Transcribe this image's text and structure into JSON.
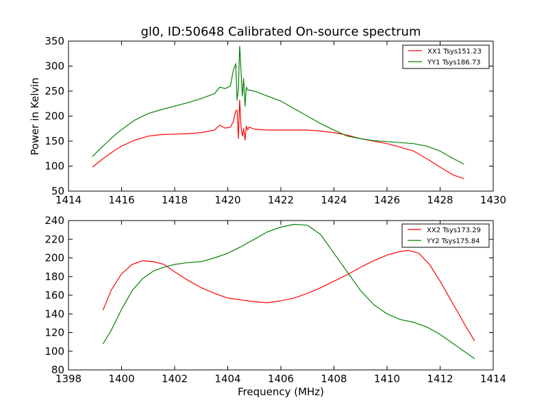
{
  "chart_data": [
    {
      "type": "line",
      "title": "gl0, ID:50648 Calibrated On-source spectrum",
      "xlabel": "",
      "ylabel": "Power in Kelvin",
      "xlim": [
        1414,
        1430
      ],
      "ylim": [
        50,
        350
      ],
      "xticks": [
        1414,
        1416,
        1418,
        1420,
        1422,
        1424,
        1426,
        1428,
        1430
      ],
      "yticks": [
        50,
        100,
        150,
        200,
        250,
        300,
        350
      ],
      "legend_position": "top-right",
      "grid": false,
      "series": [
        {
          "name": "XX1 Tsys151.23",
          "color": "#ff0000",
          "x": [
            1414.9,
            1415.3,
            1415.7,
            1416.0,
            1416.5,
            1417.0,
            1417.5,
            1418.0,
            1418.5,
            1419.0,
            1419.5,
            1419.7,
            1419.9,
            1420.1,
            1420.2,
            1420.3,
            1420.35,
            1420.4,
            1420.45,
            1420.5,
            1420.55,
            1420.6,
            1420.65,
            1420.7,
            1420.75,
            1420.8,
            1421.0,
            1421.5,
            1422.0,
            1422.5,
            1423.0,
            1423.5,
            1424.0,
            1424.5,
            1425.0,
            1425.5,
            1426.0,
            1426.5,
            1427.0,
            1427.5,
            1428.0,
            1428.5,
            1428.9
          ],
          "y": [
            98,
            115,
            130,
            140,
            152,
            160,
            163,
            164,
            165,
            167,
            172,
            182,
            176,
            178,
            188,
            210,
            212,
            155,
            232,
            178,
            160,
            175,
            152,
            180,
            172,
            178,
            174,
            172,
            172,
            172,
            172,
            170,
            167,
            162,
            155,
            150,
            145,
            138,
            130,
            115,
            98,
            82,
            75
          ]
        },
        {
          "name": "YY1 Tsys186.73",
          "color": "#008000",
          "x": [
            1414.9,
            1415.3,
            1415.7,
            1416.0,
            1416.5,
            1417.0,
            1417.5,
            1418.0,
            1418.5,
            1419.0,
            1419.5,
            1419.7,
            1419.9,
            1420.1,
            1420.2,
            1420.3,
            1420.35,
            1420.4,
            1420.45,
            1420.5,
            1420.55,
            1420.6,
            1420.65,
            1420.7,
            1420.75,
            1420.8,
            1421.0,
            1421.5,
            1422.0,
            1422.5,
            1423.0,
            1423.5,
            1424.0,
            1424.5,
            1425.0,
            1425.5,
            1426.0,
            1426.5,
            1427.0,
            1427.5,
            1428.0,
            1428.5,
            1428.9
          ],
          "y": [
            119,
            140,
            160,
            173,
            192,
            205,
            213,
            220,
            227,
            235,
            245,
            258,
            255,
            260,
            290,
            305,
            232,
            255,
            340,
            290,
            240,
            275,
            220,
            258,
            252,
            252,
            250,
            240,
            230,
            215,
            200,
            185,
            172,
            160,
            155,
            151,
            149,
            147,
            145,
            140,
            130,
            115,
            104
          ]
        }
      ]
    },
    {
      "type": "line",
      "title": "",
      "xlabel": "Frequency (MHz)",
      "ylabel": "",
      "xlim": [
        1398,
        1414
      ],
      "ylim": [
        80,
        240
      ],
      "xticks": [
        1398,
        1400,
        1402,
        1404,
        1406,
        1408,
        1410,
        1412,
        1414
      ],
      "yticks": [
        80,
        100,
        120,
        140,
        160,
        180,
        200,
        220,
        240
      ],
      "legend_position": "top-right",
      "grid": false,
      "series": [
        {
          "name": "XX2 Tsys173.29",
          "color": "#ff0000",
          "x": [
            1399.3,
            1399.6,
            1400.0,
            1400.4,
            1400.8,
            1401.2,
            1401.6,
            1402.0,
            1402.5,
            1403.0,
            1403.5,
            1404.0,
            1404.5,
            1405.0,
            1405.5,
            1406.0,
            1406.5,
            1407.0,
            1407.5,
            1408.0,
            1408.5,
            1409.0,
            1409.5,
            1410.0,
            1410.5,
            1410.8,
            1411.2,
            1411.6,
            1412.0,
            1412.5,
            1413.0,
            1413.3
          ],
          "y": [
            144,
            165,
            183,
            193,
            197,
            196,
            193,
            185,
            176,
            168,
            162,
            157,
            155,
            153,
            152,
            154,
            157,
            162,
            168,
            175,
            182,
            190,
            197,
            203,
            207,
            208,
            205,
            193,
            175,
            150,
            125,
            111
          ]
        },
        {
          "name": "YY2 Tsys175.84",
          "color": "#008000",
          "x": [
            1399.3,
            1399.6,
            1400.0,
            1400.4,
            1400.8,
            1401.2,
            1401.6,
            1402.0,
            1402.5,
            1403.0,
            1403.5,
            1404.0,
            1404.5,
            1405.0,
            1405.5,
            1406.0,
            1406.5,
            1407.0,
            1407.5,
            1408.0,
            1408.5,
            1409.0,
            1409.5,
            1410.0,
            1410.5,
            1411.0,
            1411.5,
            1412.0,
            1412.5,
            1413.0,
            1413.3
          ],
          "y": [
            108,
            122,
            145,
            165,
            178,
            186,
            190,
            193,
            195,
            196,
            200,
            205,
            212,
            220,
            228,
            233,
            236,
            235,
            225,
            205,
            185,
            165,
            150,
            140,
            134,
            131,
            126,
            118,
            108,
            98,
            92
          ]
        }
      ]
    }
  ]
}
